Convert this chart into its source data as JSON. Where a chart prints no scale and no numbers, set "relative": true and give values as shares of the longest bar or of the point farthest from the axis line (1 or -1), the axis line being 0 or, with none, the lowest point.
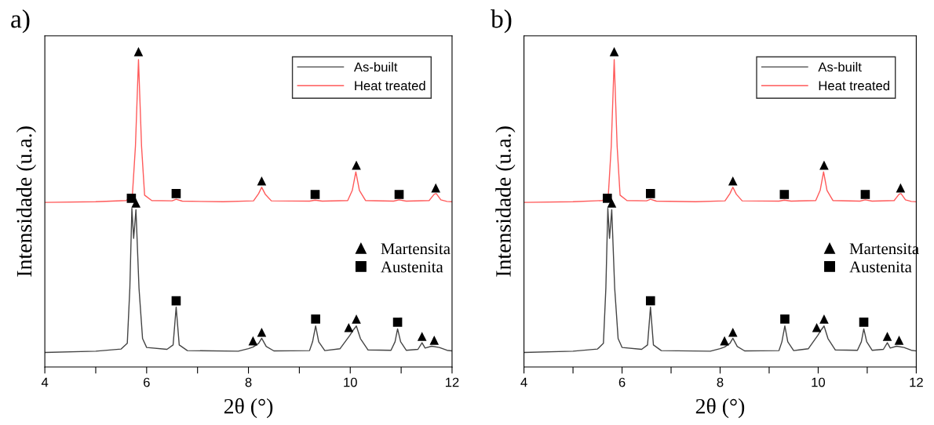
{
  "chart_data": [
    {
      "type": "line",
      "title": "a)",
      "xlabel": "2θ (°)",
      "ylabel": "Intensidade (u.a.)",
      "relative": true,
      "tick_labels": "x",
      "grid": false,
      "legend": "top right",
      "xlim": [
        4,
        12
      ],
      "xticks": [
        4,
        {
          "value": 5,
          "label": null
        },
        6,
        {
          "value": 7,
          "label": null
        },
        8,
        {
          "value": 9,
          "label": null
        },
        10,
        {
          "value": 11,
          "label": null
        },
        12
      ],
      "series": [
        {
          "name": "As-built",
          "color": "#444444",
          "x": [
            4.0,
            5.0,
            5.5,
            5.62,
            5.67,
            5.71,
            5.745,
            5.79,
            5.85,
            5.92,
            6.0,
            6.4,
            6.52,
            6.58,
            6.64,
            6.8,
            7.8,
            8.0,
            8.09,
            8.2,
            8.26,
            8.35,
            8.5,
            9.2,
            9.26,
            9.32,
            9.38,
            9.5,
            9.8,
            9.99,
            10.05,
            10.12,
            10.2,
            10.35,
            10.8,
            10.88,
            10.93,
            10.99,
            11.1,
            11.33,
            11.41,
            11.47,
            11.6,
            11.75,
            11.9,
            12.0
          ],
          "values": [
            0.046,
            0.05,
            0.057,
            0.075,
            0.25,
            0.503,
            0.408,
            0.499,
            0.25,
            0.09,
            0.062,
            0.056,
            0.07,
            0.19,
            0.07,
            0.052,
            0.05,
            0.058,
            0.063,
            0.075,
            0.091,
            0.065,
            0.051,
            0.052,
            0.08,
            0.13,
            0.08,
            0.052,
            0.058,
            0.1,
            0.115,
            0.13,
            0.09,
            0.054,
            0.053,
            0.08,
            0.121,
            0.08,
            0.053,
            0.056,
            0.077,
            0.06,
            0.066,
            0.062,
            0.053,
            0.051
          ]
        },
        {
          "name": "Heat treated",
          "color": "#ff5a5a",
          "x": [
            4.0,
            5.0,
            5.6,
            5.72,
            5.78,
            5.84,
            5.9,
            5.96,
            6.1,
            6.5,
            6.58,
            6.7,
            7.5,
            8.1,
            8.2,
            8.26,
            8.33,
            8.45,
            9.2,
            9.31,
            9.45,
            9.95,
            10.04,
            10.11,
            10.18,
            10.3,
            10.85,
            10.96,
            11.1,
            11.55,
            11.65,
            11.69,
            11.78,
            11.9,
            12.0
          ],
          "values": [
            0.522,
            0.524,
            0.528,
            0.545,
            0.7,
            0.975,
            0.7,
            0.545,
            0.528,
            0.527,
            0.532,
            0.526,
            0.524,
            0.527,
            0.55,
            0.57,
            0.548,
            0.527,
            0.526,
            0.529,
            0.526,
            0.528,
            0.56,
            0.619,
            0.56,
            0.528,
            0.526,
            0.53,
            0.526,
            0.528,
            0.548,
            0.55,
            0.53,
            0.525,
            0.524
          ]
        },
        {
          "name": "Martensita",
          "type": "scatter",
          "marker": "triangle",
          "color": "#000000",
          "x": [
            5.84,
            8.26,
            10.12,
            11.68,
            5.79,
            8.09,
            8.26,
            9.97,
            10.12,
            11.41,
            11.65
          ],
          "values": [
            1.0,
            0.59,
            0.64,
            0.568,
            0.52,
            0.083,
            0.11,
            0.125,
            0.152,
            0.097,
            0.085
          ]
        },
        {
          "name": "Austenita",
          "type": "scatter",
          "marker": "square",
          "color": "#000000",
          "x": [
            5.7,
            6.58,
            9.31,
            10.96,
            6.58,
            9.32,
            10.93
          ],
          "values": [
            0.535,
            0.55,
            0.547,
            0.547,
            0.21,
            0.152,
            0.142
          ]
        }
      ]
    },
    {
      "type": "line",
      "title": "b)",
      "xlabel": "2θ (°)",
      "ylabel": "Intensidade (u.a.)",
      "relative": true,
      "tick_labels": "x",
      "grid": false,
      "legend": "top right",
      "xlim": [
        4,
        12
      ],
      "xticks": [
        4,
        {
          "value": 5,
          "label": null
        },
        6,
        {
          "value": 7,
          "label": null
        },
        8,
        {
          "value": 9,
          "label": null
        },
        10,
        {
          "value": 11,
          "label": null
        },
        12
      ],
      "series": [
        {
          "name": "As-built",
          "color": "#444444",
          "x": [
            4.0,
            5.0,
            5.5,
            5.62,
            5.67,
            5.71,
            5.745,
            5.79,
            5.85,
            5.92,
            6.0,
            6.4,
            6.52,
            6.58,
            6.64,
            6.8,
            7.8,
            8.0,
            8.09,
            8.2,
            8.26,
            8.35,
            8.5,
            9.2,
            9.26,
            9.32,
            9.38,
            9.5,
            9.8,
            9.99,
            10.05,
            10.12,
            10.2,
            10.35,
            10.8,
            10.88,
            10.93,
            10.99,
            11.1,
            11.33,
            11.41,
            11.47,
            11.6,
            11.75,
            11.9,
            12.0
          ],
          "values": [
            0.046,
            0.05,
            0.057,
            0.075,
            0.25,
            0.503,
            0.408,
            0.499,
            0.25,
            0.09,
            0.062,
            0.056,
            0.07,
            0.19,
            0.07,
            0.052,
            0.05,
            0.058,
            0.063,
            0.075,
            0.091,
            0.065,
            0.051,
            0.052,
            0.08,
            0.13,
            0.08,
            0.052,
            0.058,
            0.1,
            0.115,
            0.13,
            0.09,
            0.054,
            0.053,
            0.08,
            0.121,
            0.08,
            0.053,
            0.056,
            0.077,
            0.06,
            0.066,
            0.062,
            0.053,
            0.051
          ]
        },
        {
          "name": "Heat treated",
          "color": "#ff5a5a",
          "x": [
            4.0,
            5.0,
            5.6,
            5.72,
            5.78,
            5.84,
            5.9,
            5.96,
            6.1,
            6.5,
            6.58,
            6.7,
            7.5,
            8.1,
            8.2,
            8.26,
            8.33,
            8.45,
            9.2,
            9.31,
            9.45,
            9.95,
            10.04,
            10.11,
            10.18,
            10.3,
            10.85,
            10.96,
            11.1,
            11.55,
            11.65,
            11.69,
            11.78,
            11.9,
            12.0
          ],
          "values": [
            0.522,
            0.524,
            0.528,
            0.545,
            0.7,
            0.975,
            0.7,
            0.545,
            0.528,
            0.527,
            0.532,
            0.526,
            0.524,
            0.527,
            0.55,
            0.57,
            0.548,
            0.527,
            0.526,
            0.529,
            0.526,
            0.528,
            0.56,
            0.619,
            0.56,
            0.528,
            0.526,
            0.53,
            0.526,
            0.528,
            0.548,
            0.55,
            0.53,
            0.525,
            0.524
          ]
        },
        {
          "name": "Martensita",
          "type": "scatter",
          "marker": "triangle",
          "color": "#000000",
          "x": [
            5.84,
            8.26,
            10.12,
            11.68,
            5.79,
            8.09,
            8.26,
            9.97,
            10.12,
            11.41,
            11.65
          ],
          "values": [
            1.0,
            0.59,
            0.64,
            0.568,
            0.52,
            0.083,
            0.11,
            0.125,
            0.152,
            0.097,
            0.085
          ]
        },
        {
          "name": "Austenita",
          "type": "scatter",
          "marker": "square",
          "color": "#000000",
          "x": [
            5.7,
            6.58,
            9.31,
            10.96,
            6.58,
            9.32,
            10.93
          ],
          "values": [
            0.535,
            0.55,
            0.547,
            0.547,
            0.21,
            0.152,
            0.142
          ]
        }
      ]
    }
  ]
}
